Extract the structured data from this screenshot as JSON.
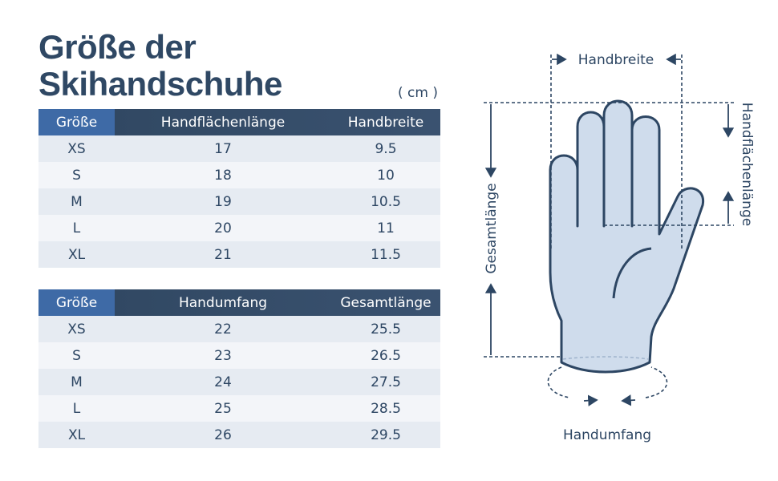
{
  "header": {
    "title_line1": "Größe der",
    "title_line2": "Skihandschuhe",
    "unit": "( cm )"
  },
  "tables": [
    {
      "columns": [
        "Größe",
        "Handflächenlänge",
        "Handbreite"
      ],
      "rows": [
        [
          "XS",
          "17",
          "9.5"
        ],
        [
          "S",
          "18",
          "10"
        ],
        [
          "M",
          "19",
          "10.5"
        ],
        [
          "L",
          "20",
          "11"
        ],
        [
          "XL",
          "21",
          "11.5"
        ]
      ]
    },
    {
      "columns": [
        "Größe",
        "Handumfang",
        "Gesamtlänge"
      ],
      "rows": [
        [
          "XS",
          "22",
          "25.5"
        ],
        [
          "S",
          "23",
          "26.5"
        ],
        [
          "M",
          "24",
          "27.5"
        ],
        [
          "L",
          "25",
          "28.5"
        ],
        [
          "XL",
          "26",
          "29.5"
        ]
      ]
    }
  ],
  "diagram": {
    "hand_width": "Handbreite",
    "palm_length": "Handflächenlänge",
    "total_length": "Gesamtlänge",
    "circumference": "Handumfang"
  }
}
